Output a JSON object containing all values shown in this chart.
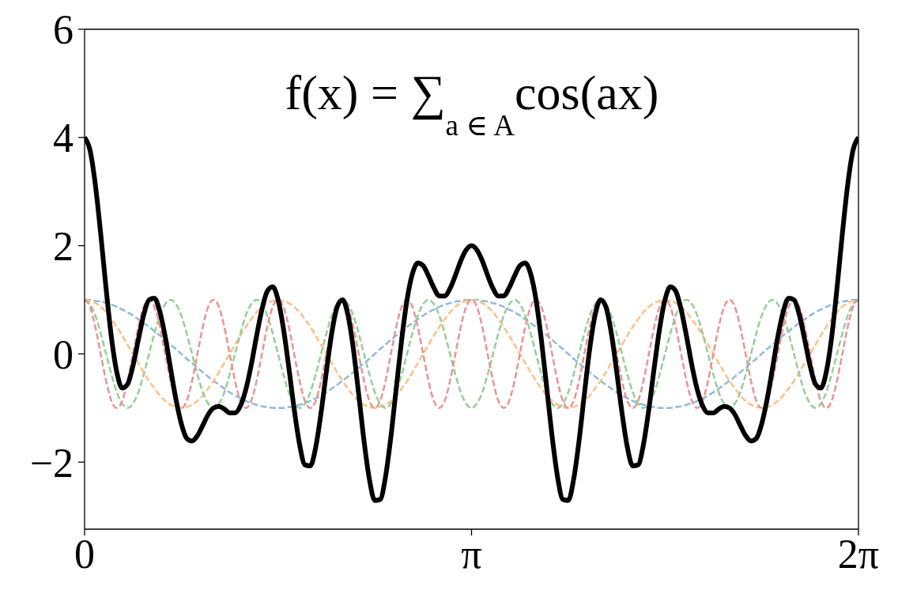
{
  "chart_data": {
    "type": "line",
    "title": "f(x) = ∑$_{a ∈ A}$cos(ax)",
    "xlim": [
      0,
      6.2832
    ],
    "xticks": [
      0,
      {
        "value": 3.1416,
        "label": "π"
      },
      {
        "value": 6.2832,
        "label": "2π"
      }
    ],
    "ylim": [
      -3.24,
      6
    ],
    "yticks": [
      {
        "value": -2,
        "label": "−2"
      },
      0,
      2,
      4,
      6
    ],
    "x": [
      0,
      0.0436,
      0.0873,
      0.1309,
      0.1745,
      0.2182,
      0.2618,
      0.3054,
      0.3491,
      0.3927,
      0.4363,
      0.48,
      0.5236,
      0.5672,
      0.6109,
      0.6545,
      0.6981,
      0.7418,
      0.7854,
      0.829,
      0.8727,
      0.9163,
      0.9599,
      1.0036,
      1.0472,
      1.0908,
      1.1345,
      1.1781,
      1.2217,
      1.2654,
      1.309,
      1.3526,
      1.3963,
      1.4399,
      1.4835,
      1.5272,
      1.5708,
      1.6144,
      1.6581,
      1.7017,
      1.7453,
      1.789,
      1.8326,
      1.8762,
      1.9199,
      1.9635,
      2.0071,
      2.0508,
      2.0944,
      2.138,
      2.1817,
      2.2253,
      2.2689,
      2.3126,
      2.3562,
      2.3998,
      2.4435,
      2.4871,
      2.5307,
      2.5744,
      2.618,
      2.6616,
      2.7053,
      2.7489,
      2.7925,
      2.8362,
      2.8798,
      2.9234,
      2.9671,
      3.0107,
      3.0543,
      3.098,
      3.1416,
      3.1852,
      3.2289,
      3.2725,
      3.3161,
      3.3598,
      3.4034,
      3.447,
      3.4907,
      3.5343,
      3.5779,
      3.6216,
      3.6652,
      3.7088,
      3.7525,
      3.7961,
      3.8397,
      3.8834,
      3.927,
      3.9706,
      4.0143,
      4.0579,
      4.1015,
      4.1452,
      4.1888,
      4.2324,
      4.2761,
      4.3197,
      4.3633,
      4.407,
      4.4506,
      4.4942,
      4.5379,
      4.5815,
      4.6251,
      4.6688,
      4.7124,
      4.756,
      4.7997,
      4.8433,
      4.8869,
      4.9306,
      4.9742,
      5.0178,
      5.0615,
      5.1051,
      5.1487,
      5.1924,
      5.236,
      5.2796,
      5.3233,
      5.3669,
      5.4105,
      5.4542,
      5.4978,
      5.5414,
      5.5851,
      5.6287,
      5.6723,
      5.716,
      5.7596,
      5.8032,
      5.8469,
      5.8905,
      5.9341,
      5.9778,
      6.0214,
      6.065,
      6.1087,
      6.1523,
      6.1959,
      6.2396,
      6.2832
    ],
    "series": [
      {
        "color": "#8fbbd9",
        "line_style": "dashed",
        "values": [
          1,
          1,
          0.98,
          0.97,
          0.94,
          0.91,
          0.87,
          0.82,
          0.77,
          0.71,
          0.64,
          0.57,
          0.5,
          0.42,
          0.34,
          0.26,
          0.17,
          0.09,
          0,
          -0.09,
          -0.17,
          -0.26,
          -0.34,
          -0.42,
          -0.5,
          -0.57,
          -0.64,
          -0.71,
          -0.77,
          -0.82,
          -0.87,
          -0.91,
          -0.94,
          -0.97,
          -0.98,
          -1,
          -1,
          -1,
          -0.98,
          -0.97,
          -0.94,
          -0.91,
          -0.87,
          -0.82,
          -0.77,
          -0.71,
          -0.64,
          -0.57,
          -0.5,
          -0.42,
          -0.34,
          -0.26,
          -0.17,
          -0.09,
          0,
          0.09,
          0.17,
          0.26,
          0.34,
          0.42,
          0.5,
          0.57,
          0.64,
          0.71,
          0.77,
          0.82,
          0.87,
          0.91,
          0.94,
          0.97,
          0.98,
          1,
          1,
          1,
          0.98,
          0.97,
          0.94,
          0.91,
          0.87,
          0.82,
          0.77,
          0.71,
          0.64,
          0.57,
          0.5,
          0.42,
          0.34,
          0.26,
          0.17,
          0.09,
          0,
          -0.09,
          -0.17,
          -0.26,
          -0.34,
          -0.42,
          -0.5,
          -0.57,
          -0.64,
          -0.71,
          -0.77,
          -0.82,
          -0.87,
          -0.91,
          -0.94,
          -0.97,
          -0.98,
          -1,
          -1,
          -1,
          -0.98,
          -0.97,
          -0.94,
          -0.91,
          -0.87,
          -0.82,
          -0.77,
          -0.71,
          -0.64,
          -0.57,
          -0.5,
          -0.42,
          -0.34,
          -0.26,
          -0.17,
          -0.09,
          0,
          0.09,
          0.17,
          0.26,
          0.34,
          0.42,
          0.5,
          0.57,
          0.64,
          0.71,
          0.77,
          0.82,
          0.87,
          0.91,
          0.94,
          0.97,
          0.98,
          1,
          1
        ]
      },
      {
        "color": "#ffbf86",
        "line_style": "dashed",
        "values": [
          1,
          0.98,
          0.94,
          0.87,
          0.77,
          0.64,
          0.5,
          0.34,
          0.17,
          0,
          -0.17,
          -0.34,
          -0.5,
          -0.64,
          -0.77,
          -0.87,
          -0.94,
          -0.98,
          -1,
          -0.98,
          -0.94,
          -0.87,
          -0.77,
          -0.64,
          -0.5,
          -0.34,
          -0.17,
          0,
          0.17,
          0.34,
          0.5,
          0.64,
          0.77,
          0.87,
          0.94,
          0.98,
          1,
          0.98,
          0.94,
          0.87,
          0.77,
          0.64,
          0.5,
          0.34,
          0.17,
          0,
          -0.17,
          -0.34,
          -0.5,
          -0.64,
          -0.77,
          -0.87,
          -0.94,
          -0.98,
          -1,
          -0.98,
          -0.94,
          -0.87,
          -0.77,
          -0.64,
          -0.5,
          -0.34,
          -0.17,
          0,
          0.17,
          0.34,
          0.5,
          0.64,
          0.77,
          0.87,
          0.94,
          0.98,
          1,
          0.98,
          0.94,
          0.87,
          0.77,
          0.64,
          0.5,
          0.34,
          0.17,
          0,
          -0.17,
          -0.34,
          -0.5,
          -0.64,
          -0.77,
          -0.87,
          -0.94,
          -0.98,
          -1,
          -0.98,
          -0.94,
          -0.87,
          -0.77,
          -0.64,
          -0.5,
          -0.34,
          -0.17,
          0,
          0.17,
          0.34,
          0.5,
          0.64,
          0.77,
          0.87,
          0.94,
          0.98,
          1,
          0.98,
          0.94,
          0.87,
          0.77,
          0.64,
          0.5,
          0.34,
          0.17,
          0,
          -0.17,
          -0.34,
          -0.5,
          -0.64,
          -0.77,
          -0.87,
          -0.94,
          -0.98,
          -1,
          -0.98,
          -0.94,
          -0.87,
          -0.77,
          -0.64,
          -0.5,
          -0.34,
          -0.17,
          0,
          0.17,
          0.34,
          0.5,
          0.64,
          0.77,
          0.87,
          0.94,
          0.98,
          1
        ]
      },
      {
        "color": "#95cf95",
        "line_style": "dashed",
        "values": [
          1,
          0.92,
          0.71,
          0.38,
          0,
          -0.38,
          -0.71,
          -0.92,
          -1,
          -0.92,
          -0.71,
          -0.38,
          0,
          0.38,
          0.71,
          0.92,
          1,
          0.92,
          0.71,
          0.38,
          0,
          -0.38,
          -0.71,
          -0.92,
          -1,
          -0.92,
          -0.71,
          -0.38,
          0,
          0.38,
          0.71,
          0.92,
          1,
          0.92,
          0.71,
          0.38,
          0,
          -0.38,
          -0.71,
          -0.92,
          -1,
          -0.92,
          -0.71,
          -0.38,
          0,
          0.38,
          0.71,
          0.92,
          1,
          0.92,
          0.71,
          0.38,
          0,
          -0.38,
          -0.71,
          -0.92,
          -1,
          -0.92,
          -0.71,
          -0.38,
          0,
          0.38,
          0.71,
          0.92,
          1,
          0.92,
          0.71,
          0.38,
          0,
          -0.38,
          -0.71,
          -0.92,
          -1,
          -0.92,
          -0.71,
          -0.38,
          0,
          0.38,
          0.71,
          0.92,
          1,
          0.92,
          0.71,
          0.38,
          0,
          -0.38,
          -0.71,
          -0.92,
          -1,
          -0.92,
          -0.71,
          -0.38,
          0,
          0.38,
          0.71,
          0.92,
          1,
          0.92,
          0.71,
          0.38,
          0,
          -0.38,
          -0.71,
          -0.92,
          -1,
          -0.92,
          -0.71,
          -0.38,
          0,
          0.38,
          0.71,
          0.92,
          1,
          0.92,
          0.71,
          0.38,
          0,
          -0.38,
          -0.71,
          -0.92,
          -1,
          -0.92,
          -0.71,
          -0.38,
          0,
          0.38,
          0.71,
          0.92,
          1,
          0.92,
          0.71,
          0.38,
          0,
          -0.38,
          -0.71,
          -0.92,
          -1,
          -0.92,
          -0.71,
          -0.38,
          0,
          0.38,
          0.71,
          0.92,
          1
        ]
      },
      {
        "color": "#ea9393",
        "line_style": "dashed",
        "values": [
          1,
          0.87,
          0.5,
          0,
          -0.5,
          -0.87,
          -1,
          -0.87,
          -0.5,
          0,
          0.5,
          0.87,
          1,
          0.87,
          0.5,
          0,
          -0.5,
          -0.87,
          -1,
          -0.87,
          -0.5,
          0,
          0.5,
          0.87,
          1,
          0.87,
          0.5,
          0,
          -0.5,
          -0.87,
          -1,
          -0.87,
          -0.5,
          0,
          0.5,
          0.87,
          1,
          0.87,
          0.5,
          0,
          -0.5,
          -0.87,
          -1,
          -0.87,
          -0.5,
          0,
          0.5,
          0.87,
          1,
          0.87,
          0.5,
          0,
          -0.5,
          -0.87,
          -1,
          -0.87,
          -0.5,
          0,
          0.5,
          0.87,
          1,
          0.87,
          0.5,
          0,
          -0.5,
          -0.87,
          -1,
          -0.87,
          -0.5,
          0,
          0.5,
          0.87,
          1,
          0.87,
          0.5,
          0,
          -0.5,
          -0.87,
          -1,
          -0.87,
          -0.5,
          0,
          0.5,
          0.87,
          1,
          0.87,
          0.5,
          0,
          -0.5,
          -0.87,
          -1,
          -0.87,
          -0.5,
          0,
          0.5,
          0.87,
          1,
          0.87,
          0.5,
          0,
          -0.5,
          -0.87,
          -1,
          -0.87,
          -0.5,
          0,
          0.5,
          0.87,
          1,
          0.87,
          0.5,
          0,
          -0.5,
          -0.87,
          -1,
          -0.87,
          -0.5,
          0,
          0.5,
          0.87,
          1,
          0.87,
          0.5,
          0,
          -0.5,
          -0.87,
          -1,
          -0.87,
          -0.5,
          0,
          0.5,
          0.87,
          1,
          0.87,
          0.5,
          0,
          -0.5,
          -0.87,
          -1,
          -0.87,
          -0.5,
          0,
          0.5,
          0.87,
          1
        ]
      },
      {
        "color": "#000000",
        "line_style": "solid",
        "values": [
          4,
          3.77,
          3.13,
          2.22,
          1.21,
          0.3,
          -0.34,
          -0.63,
          -0.56,
          -0.22,
          0.26,
          0.72,
          1,
          1.03,
          0.78,
          0.32,
          -0.27,
          -0.84,
          -1.29,
          -1.56,
          -1.61,
          -1.51,
          -1.32,
          -1.12,
          -1,
          -0.97,
          -1.02,
          -1.09,
          -1.09,
          -0.96,
          -0.66,
          -0.21,
          0.33,
          0.82,
          1.16,
          1.24,
          1,
          0.47,
          -0.25,
          -1.02,
          -1.67,
          -2.05,
          -2.07,
          -1.73,
          -1.09,
          -0.32,
          0.39,
          0.87,
          1,
          0.72,
          0.1,
          -0.74,
          -1.61,
          -2.32,
          -2.71,
          -2.69,
          -2.27,
          -1.53,
          -0.63,
          0.26,
          1,
          1.48,
          1.68,
          1.63,
          1.44,
          1.22,
          1.07,
          1.07,
          1.21,
          1.45,
          1.72,
          1.92,
          2,
          1.92,
          1.72,
          1.45,
          1.21,
          1.07,
          1.07,
          1.22,
          1.44,
          1.63,
          1.68,
          1.48,
          1,
          0.26,
          -0.63,
          -1.53,
          -2.27,
          -2.69,
          -2.71,
          -2.32,
          -1.61,
          -0.74,
          0.1,
          0.72,
          1,
          0.87,
          0.39,
          -0.32,
          -1.09,
          -1.73,
          -2.07,
          -2.05,
          -1.67,
          -1.02,
          -0.25,
          0.47,
          1,
          1.24,
          1.16,
          0.82,
          0.33,
          -0.21,
          -0.66,
          -0.96,
          -1.09,
          -1.09,
          -1.02,
          -0.97,
          -1,
          -1.12,
          -1.32,
          -1.51,
          -1.61,
          -1.56,
          -1.29,
          -0.84,
          -0.27,
          0.32,
          0.78,
          1.03,
          1,
          0.72,
          0.26,
          -0.22,
          -0.56,
          -0.63,
          -0.34,
          0.3,
          1.21,
          2.22,
          3.13,
          3.77,
          4
        ]
      }
    ]
  }
}
